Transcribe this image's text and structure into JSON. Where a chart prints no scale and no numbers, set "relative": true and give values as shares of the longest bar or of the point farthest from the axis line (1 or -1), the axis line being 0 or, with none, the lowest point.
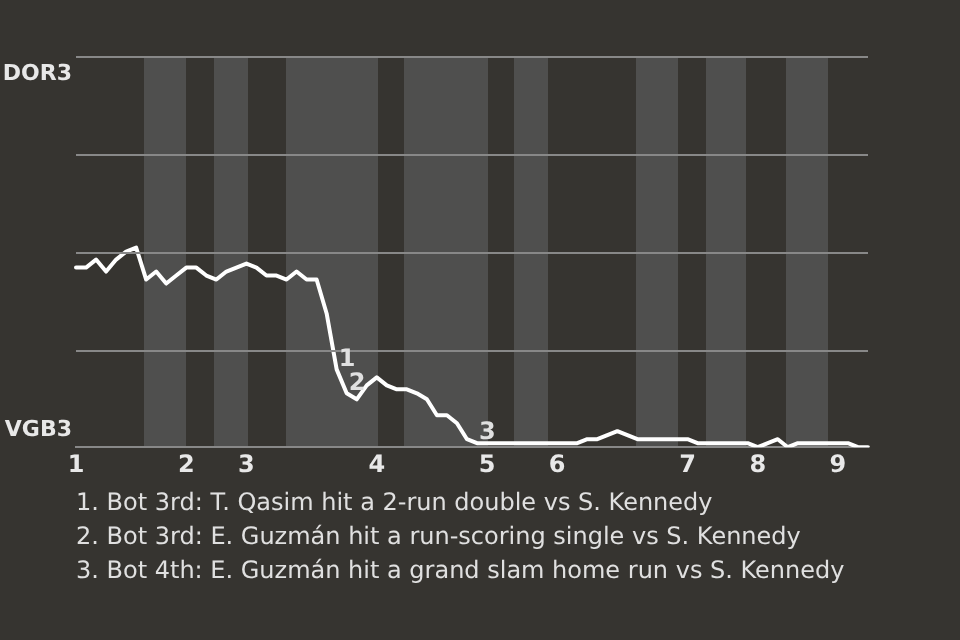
{
  "chart_data": {
    "type": "line",
    "relative": true,
    "categories": [
      "1",
      null,
      null,
      null,
      null,
      null,
      null,
      null,
      null,
      null,
      null,
      "2",
      null,
      null,
      null,
      null,
      null,
      "3",
      null,
      null,
      null,
      null,
      null,
      null,
      null,
      null,
      null,
      null,
      null,
      null,
      "4",
      null,
      null,
      null,
      null,
      null,
      null,
      null,
      null,
      null,
      null,
      "5",
      null,
      null,
      null,
      null,
      null,
      null,
      "6",
      null,
      null,
      null,
      null,
      null,
      null,
      null,
      null,
      null,
      null,
      null,
      null,
      "7",
      null,
      null,
      null,
      null,
      null,
      null,
      "8",
      null,
      null,
      null,
      null,
      null,
      null,
      null,
      "9",
      null,
      null,
      null
    ],
    "series": [
      {
        "color": "#ffffff",
        "values": [
          0.9,
          0.9,
          0.94,
          0.88,
          0.94,
          0.98,
          1,
          0.84,
          0.88,
          0.82,
          0.86,
          0.9,
          0.9,
          0.86,
          0.84,
          0.88,
          0.9,
          0.92,
          0.9,
          0.86,
          0.86,
          0.84,
          0.88,
          0.84,
          0.84,
          0.67,
          0.39,
          0.27,
          0.24,
          0.31,
          0.35,
          0.31,
          0.29,
          0.29,
          0.27,
          0.24,
          0.16,
          0.16,
          0.12,
          0.04,
          0.02,
          0.02,
          0.02,
          0.02,
          0.02,
          0.02,
          0.02,
          0.02,
          0.02,
          0.02,
          0.02,
          0.04,
          0.04,
          0.06,
          0.08,
          0.06,
          0.04,
          0.04,
          0.04,
          0.04,
          0.04,
          0.04,
          0.02,
          0.02,
          0.02,
          0.02,
          0.02,
          0.02,
          0,
          0.02,
          0.04,
          0,
          0.02,
          0.02,
          0.02,
          0.02,
          0.02,
          0.02,
          0,
          0
        ],
        "name": null
      }
    ],
    "ref_lines": [
      {
        "axis": "y",
        "value": 0.49,
        "color": "#888888"
      },
      {
        "axis": "y",
        "value": 0.98,
        "color": "#888888"
      },
      {
        "axis": "y",
        "value": 1.47,
        "color": "#888888"
      },
      {
        "axis": "y",
        "value": 1.96,
        "color": "#888888"
      }
    ],
    "marker": "none",
    "annotations": [
      "DOR3",
      "VGB3",
      {
        "text": "1",
        "y": 0.39
      },
      {
        "text": "2",
        "y": 0.27
      },
      {
        "text": "3",
        "y": 0.02
      },
      "1. Bot 3rd: T. Qasim hit a 2-run double vs S. Kennedy",
      "2. Bot 3rd: E. Guzmán hit a run-scoring single vs S. Kennedy",
      "3. Bot 4th: E. Guzmán hit a grand slam home run vs S. Kennedy"
    ]
  }
}
